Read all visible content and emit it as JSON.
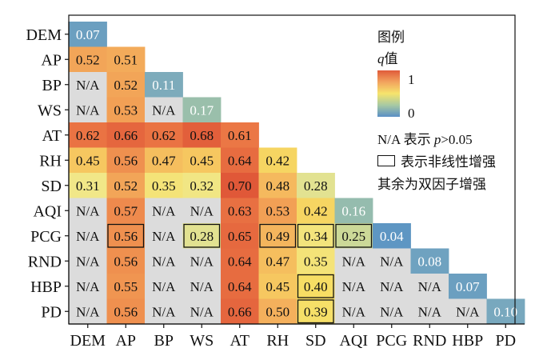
{
  "chart_data": {
    "type": "heatmap",
    "variables": [
      "DEM",
      "AP",
      "BP",
      "WS",
      "AT",
      "RH",
      "SD",
      "AQI",
      "PCG",
      "RND",
      "HBP",
      "PD"
    ],
    "matrix": [
      [
        "0.07"
      ],
      [
        "0.52",
        "0.51"
      ],
      [
        "N/A",
        "0.52",
        "0.11"
      ],
      [
        "N/A",
        "0.53",
        "N/A",
        "0.17"
      ],
      [
        "0.62",
        "0.66",
        "0.62",
        "0.68",
        "0.61"
      ],
      [
        "0.45",
        "0.56",
        "0.47",
        "0.45",
        "0.64",
        "0.42"
      ],
      [
        "0.31",
        "0.52",
        "0.35",
        "0.32",
        "0.70",
        "0.48",
        "0.28"
      ],
      [
        "N/A",
        "0.57",
        "N/A",
        "N/A",
        "0.63",
        "0.53",
        "0.42",
        "0.16"
      ],
      [
        "N/A",
        "0.56",
        "N/A",
        "0.28",
        "0.65",
        "0.49",
        "0.34",
        "0.25",
        "0.04"
      ],
      [
        "N/A",
        "0.56",
        "N/A",
        "N/A",
        "0.64",
        "0.47",
        "0.35",
        "N/A",
        "N/A",
        "0.08"
      ],
      [
        "N/A",
        "0.55",
        "N/A",
        "N/A",
        "0.64",
        "0.45",
        "0.40",
        "N/A",
        "N/A",
        "N/A",
        "0.07"
      ],
      [
        "N/A",
        "0.56",
        "N/A",
        "N/A",
        "0.66",
        "0.50",
        "0.39",
        "N/A",
        "N/A",
        "N/A",
        "N/A",
        "0.10"
      ]
    ],
    "nonlinear_enhanced_cells": [
      [
        8,
        1
      ],
      [
        8,
        3
      ],
      [
        8,
        5
      ],
      [
        8,
        6
      ],
      [
        8,
        7
      ],
      [
        10,
        6
      ],
      [
        11,
        6
      ]
    ],
    "color_scale": {
      "min": 0,
      "max": 1,
      "na_color": "#dcdcdc"
    }
  },
  "legend": {
    "title": "图例",
    "q_symbol": "q",
    "q_suffix": "值",
    "max_label": "1",
    "min_label": "0",
    "na_prefix": "N/A 表示 ",
    "na_p": "p",
    "na_suffix": ">0.05",
    "box_note": "表示非线性增强",
    "rest_note": "其余为双因子增强"
  }
}
